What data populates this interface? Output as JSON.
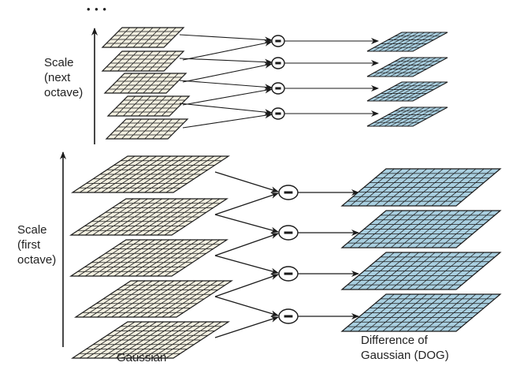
{
  "ellipsis": "• • •",
  "labels": {
    "next_octave": [
      "Scale",
      "(next",
      "octave)"
    ],
    "first_octave": [
      "Scale",
      "(first",
      "octave)"
    ],
    "gaussian": "Gaussian",
    "dog": [
      "Difference of",
      "Gaussian (DOG)"
    ]
  },
  "operator_symbol": "minus",
  "colors": {
    "gaussian_fill": "#f2efe0",
    "dog_fill": "#a9cfe0",
    "stroke": "#1a1a1a"
  },
  "octaves": [
    {
      "name": "first octave",
      "gaussian_layers": 5,
      "dog_layers": 4
    },
    {
      "name": "next octave",
      "gaussian_layers": 5,
      "dog_layers": 4
    }
  ]
}
